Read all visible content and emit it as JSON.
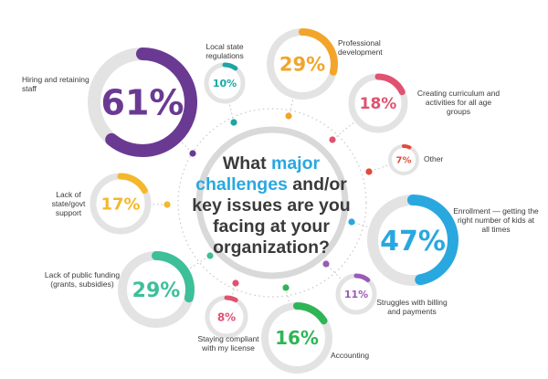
{
  "chart_data": {
    "type": "pie",
    "question": {
      "w1": "What ",
      "h1": "major",
      "h2": "challenges",
      "w2": " and/or",
      "w3": "key issues are you",
      "w4": "facing at your",
      "w5": "organization?"
    },
    "items": [
      {
        "label": "Hiring and retaining staff",
        "value": 61,
        "value_text": "61%",
        "color": "#6a3a93"
      },
      {
        "label": "Local state regulations",
        "value": 10,
        "value_text": "10%",
        "color": "#1aa6a6"
      },
      {
        "label": "Professional development",
        "value": 29,
        "value_text": "29%",
        "color": "#f2a52a"
      },
      {
        "label": "Creating curriculum and activities for all age groups",
        "value": 18,
        "value_text": "18%",
        "color": "#e0526f"
      },
      {
        "label": "Other",
        "value": 7,
        "value_text": "7%",
        "color": "#e14a3b"
      },
      {
        "label": "Enrollment — getting the right number of kids at all times",
        "value": 47,
        "value_text": "47%",
        "color": "#29a8df"
      },
      {
        "label": "Struggles with billing and payments",
        "value": 11,
        "value_text": "11%",
        "color": "#9a5ab5"
      },
      {
        "label": "Accounting",
        "value": 16,
        "value_text": "16%",
        "color": "#2fb556"
      },
      {
        "label": "Staying compliant with my license",
        "value": 8,
        "value_text": "8%",
        "color": "#e0526f"
      },
      {
        "label": "Lack of public funding (grants, subsidies)",
        "value": 29,
        "value_text": "29%",
        "color": "#3dbf9a"
      },
      {
        "label": "Lack of state/govt support",
        "value": 17,
        "value_text": "17%",
        "color": "#f4b82a"
      }
    ],
    "colors": {
      "track": "#e3e3e3",
      "question_text": "#3a3a3a",
      "question_highlight": "#29a8df",
      "dotted_ring": "#c8c8c8"
    }
  }
}
